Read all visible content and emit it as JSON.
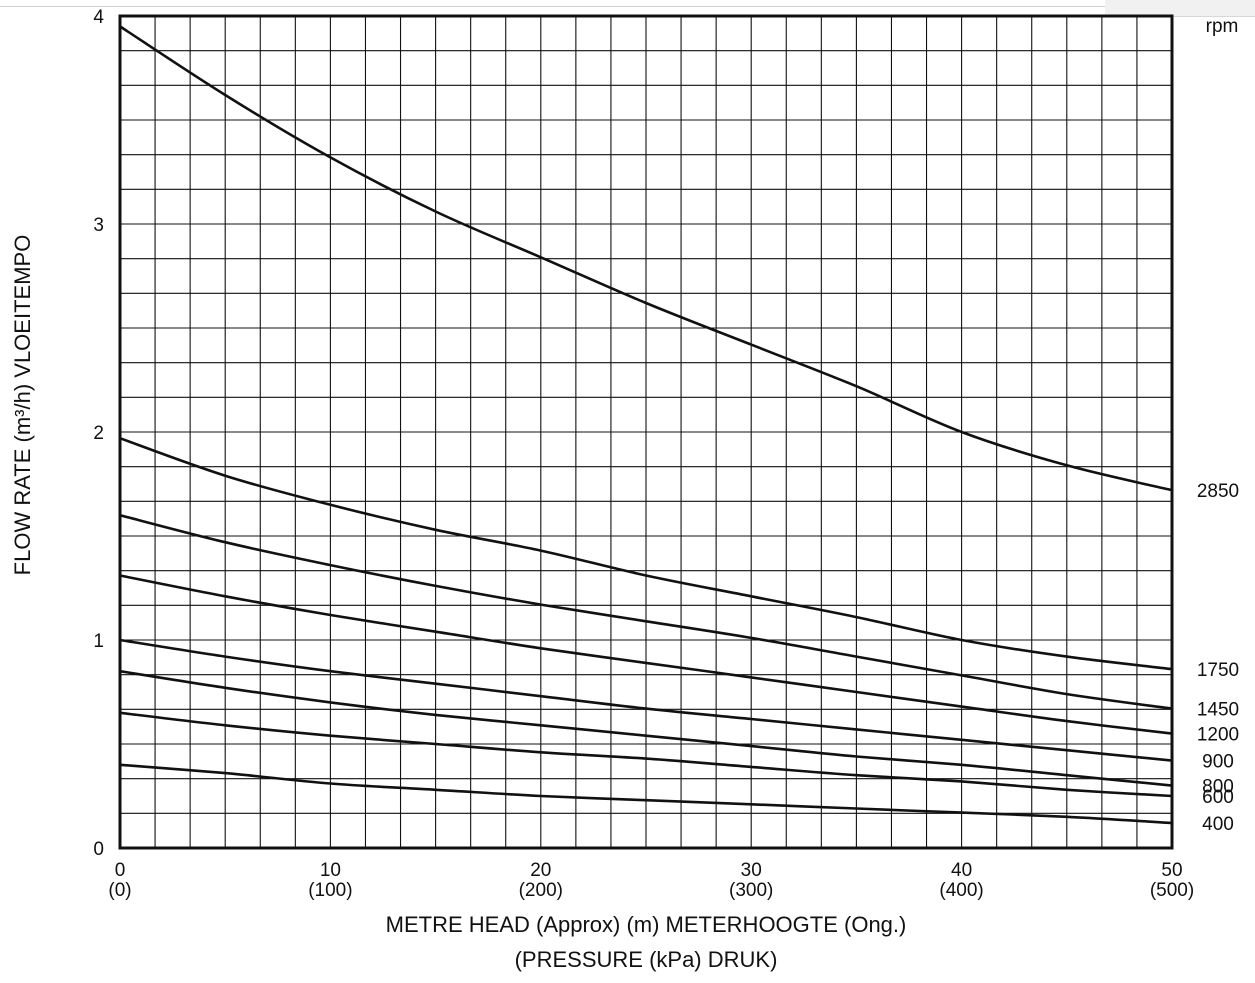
{
  "chart_data": {
    "type": "line",
    "title": "",
    "xlabel": "METRE HEAD (Approx) (m) METERHOOGTE (Ong.)",
    "xlabel2": "(PRESSURE (kPa) DRUK)",
    "ylabel": "FLOW RATE (m³/h) VLOEITEMPO",
    "xlim": [
      0,
      50
    ],
    "ylim": [
      0,
      4
    ],
    "x_ticks": [
      {
        "v": 0,
        "label": "0",
        "sub": "(0)"
      },
      {
        "v": 10,
        "label": "10",
        "sub": "(100)"
      },
      {
        "v": 20,
        "label": "20",
        "sub": "(200)"
      },
      {
        "v": 30,
        "label": "30",
        "sub": "(300)"
      },
      {
        "v": 40,
        "label": "40",
        "sub": "(400)"
      },
      {
        "v": 50,
        "label": "50",
        "sub": "(500)"
      }
    ],
    "y_ticks": [
      {
        "v": 0,
        "label": "0"
      },
      {
        "v": 1,
        "label": "1"
      },
      {
        "v": 2,
        "label": "2"
      },
      {
        "v": 3,
        "label": "3"
      },
      {
        "v": 4,
        "label": "4"
      }
    ],
    "grid": true,
    "grid_x_step": 1.667,
    "grid_y_step": 0.1667,
    "series_legend_title": "rpm",
    "series_label_position": "right",
    "x": [
      0,
      5,
      10,
      15,
      20,
      25,
      30,
      35,
      40,
      45,
      50
    ],
    "series": [
      {
        "name": "2850",
        "label_y": 1.72,
        "values": [
          3.95,
          3.62,
          3.32,
          3.06,
          2.84,
          2.62,
          2.42,
          2.22,
          2.0,
          1.84,
          1.72
        ]
      },
      {
        "name": "1750",
        "label_y": 0.86,
        "values": [
          1.97,
          1.79,
          1.65,
          1.53,
          1.43,
          1.31,
          1.21,
          1.11,
          1.0,
          0.92,
          0.86
        ]
      },
      {
        "name": "1450",
        "label_y": 0.67,
        "values": [
          1.6,
          1.47,
          1.36,
          1.26,
          1.17,
          1.09,
          1.01,
          0.92,
          0.83,
          0.74,
          0.67
        ]
      },
      {
        "name": "1200",
        "label_y": 0.55,
        "values": [
          1.31,
          1.21,
          1.12,
          1.04,
          0.96,
          0.89,
          0.82,
          0.75,
          0.68,
          0.61,
          0.55
        ]
      },
      {
        "name": "900",
        "label_y": 0.42,
        "values": [
          1.0,
          0.92,
          0.85,
          0.79,
          0.73,
          0.67,
          0.62,
          0.57,
          0.52,
          0.47,
          0.42
        ]
      },
      {
        "name": "800",
        "label_y": 0.3,
        "values": [
          0.85,
          0.77,
          0.7,
          0.64,
          0.59,
          0.54,
          0.49,
          0.44,
          0.4,
          0.35,
          0.3
        ]
      },
      {
        "name": "600",
        "label_y": 0.25,
        "values": [
          0.65,
          0.59,
          0.54,
          0.5,
          0.46,
          0.43,
          0.39,
          0.35,
          0.32,
          0.28,
          0.25
        ]
      },
      {
        "name": "400",
        "label_y": 0.12,
        "values": [
          0.4,
          0.36,
          0.31,
          0.28,
          0.25,
          0.23,
          0.21,
          0.19,
          0.17,
          0.15,
          0.12
        ]
      }
    ]
  }
}
